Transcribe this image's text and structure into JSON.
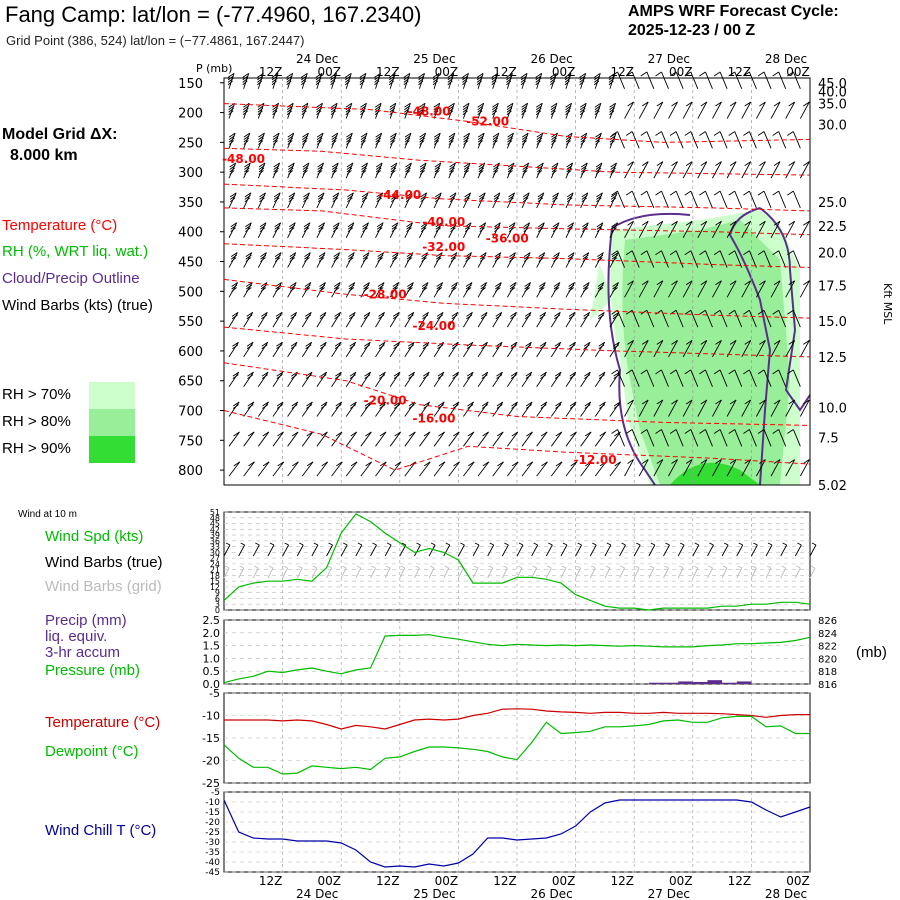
{
  "header": {
    "title": "Fang Camp:  lat/lon = (-77.4960, 167.2340)",
    "grid_point": "Grid Point (386, 524) lat/lon = (−77.4861, 167.2447)",
    "forecast_label": "AMPS WRF Forecast Cycle:",
    "forecast_cycle": "2025-12-23 / 00  Z",
    "model_grid_label": "Model Grid ΔX:",
    "model_grid_value": "8.000 km"
  },
  "colors": {
    "temperature": "#ff0000",
    "rh": "#00bb00",
    "cloud_outline": "#5b2d8e",
    "wind_barb": "#000000",
    "wind_barb_grid": "#bbbbbb",
    "rh70": "#ccffcc",
    "rh80": "#99ee99",
    "rh90": "#33dd33",
    "wind_chill": "#0000aa",
    "precip": "#5b2d8e"
  },
  "legend": {
    "temperature": "Temperature (°C)",
    "rh": "RH (%, WRT liq. wat.)",
    "cloud": "Cloud/Precip Outline",
    "wind_barbs": "Wind Barbs (kts) (true)",
    "rh70": "RH > 70%",
    "rh80": "RH > 80%",
    "rh90": "RH > 90%"
  },
  "time_axis": {
    "top_hours": [
      "12Z",
      "00Z",
      "12Z",
      "00Z",
      "12Z",
      "00Z",
      "12Z",
      "00Z",
      "12Z",
      "00Z"
    ],
    "top_dates": [
      "24 Dec",
      "25 Dec",
      "26 Dec",
      "27 Dec",
      "28 Dec"
    ],
    "bottom_hours": [
      "12Z",
      "00Z",
      "12Z",
      "00Z",
      "12Z",
      "00Z",
      "12Z",
      "00Z",
      "12Z",
      "00Z"
    ],
    "bottom_dates": [
      "24 Dec",
      "25 Dec",
      "26 Dec",
      "27 Dec",
      "28 Dec"
    ]
  },
  "chart_data": [
    {
      "type": "line",
      "name": "cross-section",
      "ylabel": "P (mb)",
      "pressure_levels": [
        150,
        200,
        250,
        300,
        350,
        400,
        450,
        500,
        550,
        600,
        650,
        700,
        750,
        800
      ],
      "pressure_labels": [
        "150",
        "200",
        "250",
        "300",
        "350",
        "400",
        "450",
        "500",
        "550",
        "600",
        "650",
        "700",
        "750",
        "800"
      ],
      "height_labels": [
        "45.0",
        "40.0",
        "35.0",
        "30.0",
        "25.0",
        "22.5",
        "20.0",
        "17.5",
        "15.0",
        "12.5",
        "10.0",
        "7.5",
        "5.02"
      ],
      "height_label_pressures": [
        150,
        165,
        185,
        220,
        350,
        390,
        435,
        490,
        550,
        610,
        695,
        745,
        825
      ],
      "right_label": "Kft MSL",
      "temp_contour_labels": [
        {
          "text": "-48.00",
          "hour": 42,
          "p": 205
        },
        {
          "text": "-52.00",
          "hour": 54,
          "p": 222
        },
        {
          "text": "-48.00",
          "hour": 4,
          "p": 285
        },
        {
          "text": "-44.00",
          "hour": 36,
          "p": 345
        },
        {
          "text": "-40.00",
          "hour": 45,
          "p": 390
        },
        {
          "text": "-36.00",
          "hour": 58,
          "p": 418
        },
        {
          "text": "-32.00",
          "hour": 45,
          "p": 432
        },
        {
          "text": "-28.00",
          "hour": 33,
          "p": 512
        },
        {
          "text": "-24.00",
          "hour": 43,
          "p": 565
        },
        {
          "text": "-20.00",
          "hour": 33,
          "p": 690
        },
        {
          "text": "-16.00",
          "hour": 43,
          "p": 720
        },
        {
          "text": "-12.00",
          "hour": 76,
          "p": 790
        }
      ],
      "pressure_axis_range": [
        142,
        825
      ],
      "hours_range": [
        0,
        120
      ]
    },
    {
      "type": "line",
      "name": "wind",
      "title": "Wind at 10 m",
      "series_label": "Wind Spd (kts)",
      "barbs_true_label": "Wind Barbs (true)",
      "barbs_grid_label": "Wind Barbs (grid)",
      "y_ticks": [
        "51",
        "48",
        "45",
        "42",
        "39",
        "36",
        "33",
        "30",
        "27",
        "24",
        "21",
        "18",
        "15",
        "12",
        "9",
        "6",
        "3",
        "0"
      ],
      "ylim": [
        0,
        51
      ],
      "hours": [
        0,
        3,
        6,
        9,
        12,
        15,
        18,
        21,
        24,
        27,
        30,
        33,
        36,
        39,
        42,
        45,
        48,
        51,
        54,
        57,
        60,
        63,
        66,
        69,
        72,
        75,
        78,
        81,
        84,
        87,
        90,
        93,
        96,
        99,
        102,
        105,
        108,
        111,
        114,
        117,
        120
      ],
      "values": [
        5,
        12,
        14,
        15,
        15,
        16,
        15,
        22,
        40,
        50,
        46,
        40,
        35,
        30,
        32,
        30,
        26,
        14,
        14,
        14,
        17,
        17,
        16,
        14,
        8,
        5,
        2,
        1,
        1,
        0,
        1,
        1,
        1,
        1,
        2,
        2,
        3,
        3,
        4,
        4,
        3
      ]
    },
    {
      "type": "line",
      "name": "pressure-precip",
      "precip_label": "Precip (mm)",
      "precip_sub1": "liq. equiv.",
      "precip_sub2": "3-hr accum",
      "pressure_label": "Pressure (mb)",
      "right_unit": "(mb)",
      "left_ticks": [
        "2.5",
        "2.0",
        "1.5",
        "1.0",
        "0.5",
        "0.0"
      ],
      "right_ticks": [
        "826",
        "824",
        "822",
        "820",
        "818",
        "816"
      ],
      "pressure_range": [
        816,
        826
      ],
      "precip_range": [
        0,
        2.5
      ],
      "hours": [
        0,
        3,
        6,
        9,
        12,
        15,
        18,
        21,
        24,
        27,
        30,
        33,
        36,
        39,
        42,
        45,
        48,
        51,
        54,
        57,
        60,
        63,
        66,
        69,
        72,
        75,
        78,
        81,
        84,
        87,
        90,
        93,
        96,
        99,
        102,
        105,
        108,
        111,
        114,
        117,
        120
      ],
      "pressure": [
        816.2,
        816.8,
        817.2,
        818.0,
        817.8,
        818.2,
        818.5,
        818.0,
        817.6,
        818.2,
        818.5,
        823.5,
        823.6,
        823.6,
        823.7,
        823.3,
        823.0,
        822.6,
        822.2,
        822.0,
        822.2,
        822.1,
        822.0,
        822.1,
        822.0,
        822.1,
        822.0,
        821.9,
        822.0,
        821.9,
        821.8,
        821.8,
        821.8,
        822.0,
        822.1,
        822.3,
        822.3,
        822.4,
        822.5,
        822.8,
        823.3
      ],
      "precip_hours": [
        87,
        90,
        93,
        96,
        99,
        102,
        105
      ],
      "precip_values": [
        0.05,
        0.05,
        0.1,
        0.08,
        0.15,
        0.05,
        0.1
      ]
    },
    {
      "type": "line",
      "name": "temperature-dewpoint",
      "series_labels": [
        "Temperature (°C)",
        "Dewpoint (°C)"
      ],
      "y_ticks": [
        "-5",
        "-10",
        "-15",
        "-20",
        "-25"
      ],
      "ylim": [
        -25,
        -5
      ],
      "hours": [
        0,
        3,
        6,
        9,
        12,
        15,
        18,
        21,
        24,
        27,
        30,
        33,
        36,
        39,
        42,
        45,
        48,
        51,
        54,
        57,
        60,
        63,
        66,
        69,
        72,
        75,
        78,
        81,
        84,
        87,
        90,
        93,
        96,
        99,
        102,
        105,
        108,
        111,
        114,
        117,
        120
      ],
      "temperature": [
        -11.0,
        -11.0,
        -11.0,
        -11.0,
        -11.2,
        -11.0,
        -11.2,
        -12.0,
        -13.0,
        -12.2,
        -12.5,
        -13.0,
        -12.0,
        -11.0,
        -10.8,
        -11.0,
        -10.8,
        -10.0,
        -9.5,
        -8.6,
        -8.5,
        -8.6,
        -9.0,
        -9.2,
        -9.3,
        -9.5,
        -9.3,
        -9.3,
        -9.5,
        -9.5,
        -9.3,
        -9.5,
        -9.5,
        -9.5,
        -9.6,
        -9.8,
        -10.0,
        -10.4,
        -10.0,
        -9.8,
        -9.8
      ],
      "dewpoint": [
        -16.5,
        -19.5,
        -21.5,
        -21.5,
        -23.0,
        -22.8,
        -21.2,
        -21.5,
        -21.8,
        -21.5,
        -22.0,
        -19.5,
        -19.2,
        -18.0,
        -17.0,
        -17.0,
        -17.2,
        -17.5,
        -18.0,
        -19.2,
        -19.8,
        -16.0,
        -11.5,
        -14.0,
        -13.8,
        -13.5,
        -12.5,
        -12.5,
        -12.3,
        -12.0,
        -11.2,
        -11.0,
        -11.5,
        -11.5,
        -10.5,
        -10.2,
        -10.2,
        -12.5,
        -12.3,
        -14.0,
        -14.0
      ]
    },
    {
      "type": "line",
      "name": "wind-chill",
      "series_label": "Wind Chill T (°C)",
      "y_ticks": [
        "-5",
        "-10",
        "-15",
        "-20",
        "-25",
        "-30",
        "-35",
        "-40",
        "-45"
      ],
      "ylim": [
        -45,
        -5
      ],
      "hours": [
        0,
        3,
        6,
        9,
        12,
        15,
        18,
        21,
        24,
        27,
        30,
        33,
        36,
        39,
        42,
        45,
        48,
        51,
        54,
        57,
        60,
        63,
        66,
        69,
        72,
        75,
        78,
        81,
        84,
        87,
        90,
        93,
        96,
        99,
        102,
        105,
        108,
        111,
        114,
        117,
        120
      ],
      "values": [
        -9.0,
        -25.0,
        -28.0,
        -28.5,
        -28.5,
        -29.5,
        -29.5,
        -29.5,
        -30.5,
        -34.0,
        -40.0,
        -42.5,
        -42.0,
        -42.5,
        -41.0,
        -42.0,
        -40.5,
        -36.0,
        -28.0,
        -28.0,
        -29.0,
        -28.5,
        -28.0,
        -26.0,
        -22.0,
        -15.0,
        -10.5,
        -9.0,
        -9.0,
        -9.0,
        -9.0,
        -9.0,
        -9.0,
        -9.0,
        -9.0,
        -9.0,
        -10.0,
        -14.0,
        -17.5,
        -15.0,
        -12.5
      ]
    }
  ]
}
